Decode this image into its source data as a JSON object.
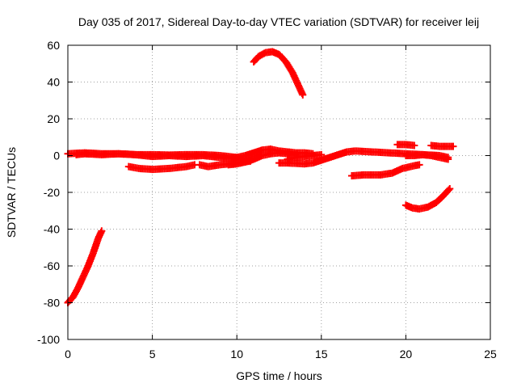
{
  "chart_data": {
    "type": "scatter",
    "title": "Day 035 of 2017, Sidereal Day-to-day VTEC variation (SDTVAR) for receiver leij",
    "xlabel": "GPS time / hours",
    "ylabel": "SDTVAR / TECUs",
    "xlim": [
      0,
      25
    ],
    "ylim": [
      -100,
      60
    ],
    "xticks": [
      "0",
      "5",
      "10",
      "15",
      "20",
      "25"
    ],
    "yticks": [
      "-100",
      "-80",
      "-60",
      "-40",
      "-20",
      "0",
      "20",
      "40",
      "60"
    ],
    "grid": true,
    "marker": "plus",
    "series_color": "#ff0000",
    "series": [
      {
        "points": [
          [
            0,
            -80
          ],
          [
            0.3,
            -77
          ],
          [
            0.6,
            -72
          ],
          [
            0.9,
            -66
          ],
          [
            1.2,
            -60
          ],
          [
            1.5,
            -53
          ],
          [
            1.8,
            -45
          ],
          [
            2.0,
            -41
          ]
        ]
      },
      {
        "points": [
          [
            0,
            1
          ],
          [
            1,
            1.5
          ],
          [
            2,
            1
          ],
          [
            3,
            1
          ],
          [
            4,
            0.5
          ],
          [
            5,
            0.5
          ],
          [
            6,
            0.3
          ],
          [
            7,
            0.5
          ],
          [
            8,
            0.5
          ],
          [
            9,
            0
          ],
          [
            10,
            -1
          ],
          [
            10.5,
            -2
          ]
        ]
      },
      {
        "points": [
          [
            0.5,
            0.5
          ],
          [
            1,
            1
          ],
          [
            2,
            0.5
          ],
          [
            3,
            1
          ],
          [
            4,
            0.5
          ],
          [
            5,
            -0.5
          ],
          [
            6,
            0
          ],
          [
            7,
            -0.5
          ],
          [
            8,
            0
          ],
          [
            9,
            -1
          ],
          [
            10,
            -1.5
          ]
        ]
      },
      {
        "points": [
          [
            3.6,
            -6
          ],
          [
            4.2,
            -7
          ],
          [
            5,
            -7.5
          ],
          [
            6,
            -7
          ],
          [
            7,
            -6
          ],
          [
            7.5,
            -5
          ]
        ]
      },
      {
        "points": [
          [
            7.8,
            -5
          ],
          [
            8.3,
            -6
          ],
          [
            9,
            -5
          ],
          [
            10,
            -4
          ],
          [
            10.8,
            -3
          ]
        ]
      },
      {
        "points": [
          [
            9.5,
            -5
          ],
          [
            10,
            -4.5
          ],
          [
            10.5,
            -3.5
          ],
          [
            11,
            -2
          ],
          [
            11.5,
            0
          ],
          [
            12,
            1
          ],
          [
            12.5,
            1.5
          ],
          [
            13,
            1
          ],
          [
            13.5,
            0.5
          ]
        ]
      },
      {
        "points": [
          [
            10,
            -1
          ],
          [
            10.5,
            0
          ],
          [
            11,
            1.5
          ],
          [
            11.5,
            3
          ],
          [
            12,
            3.5
          ],
          [
            12.5,
            2.5
          ],
          [
            13,
            2
          ],
          [
            13.5,
            1.5
          ],
          [
            14,
            1.5
          ],
          [
            14.5,
            1
          ]
        ]
      },
      {
        "points": [
          [
            12.5,
            -4
          ],
          [
            13,
            -4
          ],
          [
            14,
            -4.5
          ],
          [
            14.5,
            -4
          ],
          [
            15,
            -2.5
          ],
          [
            15.5,
            -1
          ],
          [
            16,
            0.5
          ],
          [
            16.5,
            2
          ],
          [
            17,
            2.5
          ],
          [
            18,
            2
          ],
          [
            19,
            1.5
          ],
          [
            20,
            1
          ],
          [
            21,
            0.5
          ],
          [
            22,
            0
          ],
          [
            22.5,
            -1
          ]
        ]
      },
      {
        "points": [
          [
            13,
            -2
          ],
          [
            13.5,
            -1
          ],
          [
            14,
            -0.5
          ],
          [
            14.5,
            0
          ],
          [
            15,
            0.5
          ]
        ]
      },
      {
        "points": [
          [
            11,
            51
          ],
          [
            11.3,
            54
          ],
          [
            11.7,
            56
          ],
          [
            12.1,
            56.5
          ],
          [
            12.5,
            55
          ],
          [
            12.9,
            51
          ],
          [
            13.3,
            45
          ],
          [
            13.6,
            39
          ],
          [
            13.9,
            33
          ]
        ]
      },
      {
        "points": [
          [
            16.8,
            -11
          ],
          [
            17.5,
            -10.5
          ],
          [
            18.5,
            -10.5
          ],
          [
            19.2,
            -9.5
          ],
          [
            19.8,
            -7
          ],
          [
            20.5,
            -5.5
          ],
          [
            20.8,
            -5
          ]
        ]
      },
      {
        "points": [
          [
            19.5,
            6
          ],
          [
            20,
            6
          ],
          [
            20.5,
            5.5
          ]
        ]
      },
      {
        "points": [
          [
            21.5,
            5.5
          ],
          [
            22,
            5
          ],
          [
            22.5,
            5
          ],
          [
            22.8,
            5
          ]
        ]
      },
      {
        "points": [
          [
            20,
            -27
          ],
          [
            20.4,
            -28.5
          ],
          [
            20.8,
            -29
          ],
          [
            21.3,
            -28
          ],
          [
            21.8,
            -25.5
          ],
          [
            22.2,
            -22
          ],
          [
            22.6,
            -18
          ]
        ]
      },
      {
        "points": [
          [
            20,
            0
          ],
          [
            20.5,
            0
          ],
          [
            21,
            0.5
          ],
          [
            21.5,
            0
          ],
          [
            22,
            -1
          ],
          [
            22.5,
            -2
          ]
        ]
      }
    ]
  }
}
